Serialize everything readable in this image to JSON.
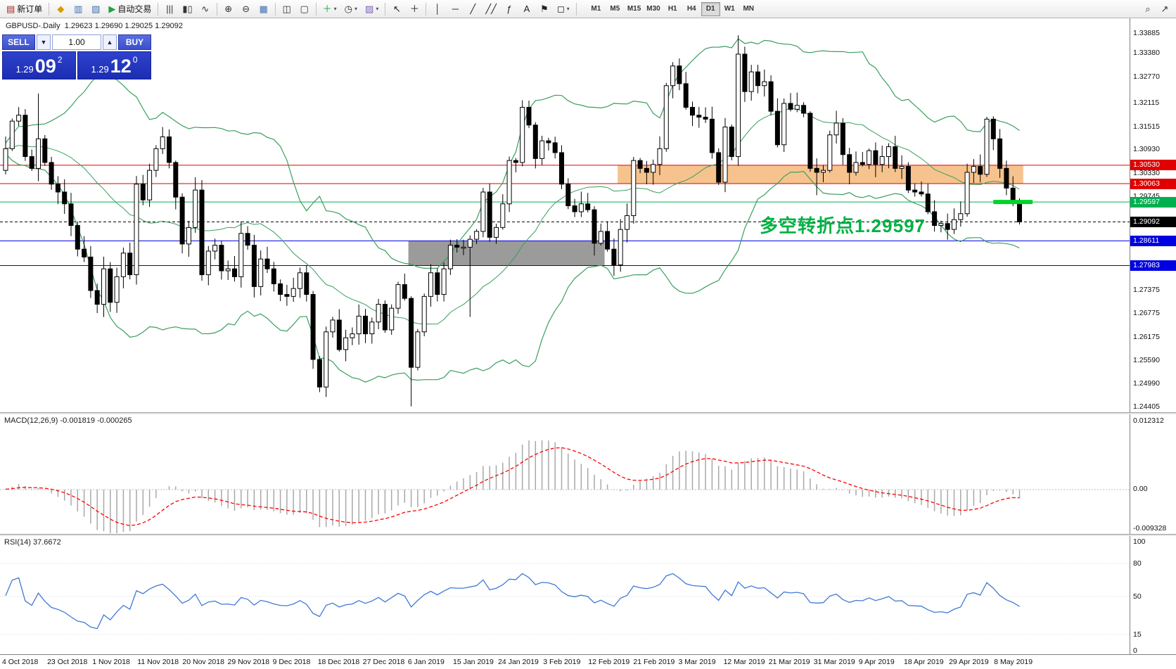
{
  "toolbar": {
    "items": [
      {
        "name": "new-order-button",
        "icon": "new-order-icon",
        "glyph": "▤",
        "color": "#b02020",
        "label": "新订单"
      },
      {
        "sep": true
      },
      {
        "name": "metaeditor-button",
        "icon": "metaeditor-icon",
        "glyph": "◆",
        "color": "#d99a00"
      },
      {
        "name": "new-chart-button",
        "icon": "new-chart-icon",
        "glyph": "▥",
        "color": "#3a6fb0"
      },
      {
        "name": "profiles-button",
        "icon": "profiles-icon",
        "glyph": "▧",
        "color": "#3a6fb0"
      },
      {
        "name": "autotrading-button",
        "icon": "autotrading-icon",
        "glyph": "▶",
        "color": "#1fa43d",
        "label": "自动交易"
      },
      {
        "sep": true
      },
      {
        "name": "bar-chart-button",
        "icon": "bar-chart-icon",
        "glyph": "|||",
        "color": "#333333"
      },
      {
        "name": "candlestick-chart-button",
        "icon": "candlestick-chart-icon",
        "glyph": "▮▯",
        "color": "#333333"
      },
      {
        "name": "line-chart-button",
        "icon": "line-chart-icon",
        "glyph": "∿",
        "color": "#333333"
      },
      {
        "sep": true
      },
      {
        "name": "zoom-in-button",
        "icon": "zoom-in-icon",
        "glyph": "⊕",
        "color": "#333333"
      },
      {
        "name": "zoom-out-button",
        "icon": "zoom-out-icon",
        "glyph": "⊖",
        "color": "#333333"
      },
      {
        "name": "tile-windows-button",
        "icon": "tile-windows-icon",
        "glyph": "▦",
        "color": "#3a6fb0"
      },
      {
        "sep": true
      },
      {
        "name": "arrange-windows-button",
        "icon": "arrange-windows-icon",
        "glyph": "◫",
        "color": "#333333"
      },
      {
        "name": "cascade-windows-button",
        "icon": "cascade-windows-icon",
        "glyph": "▢",
        "color": "#333333"
      },
      {
        "sep": true
      },
      {
        "name": "indicators-button",
        "icon": "indicators-icon",
        "glyph": "＋",
        "color": "#1fa43d",
        "caret": true
      },
      {
        "name": "periods-button",
        "icon": "periods-icon",
        "glyph": "◷",
        "color": "#333333",
        "caret": true
      },
      {
        "name": "templates-button",
        "icon": "templates-icon",
        "glyph": "▨",
        "color": "#7a5cc0",
        "caret": true
      },
      {
        "sep": true
      },
      {
        "name": "cursor-button",
        "icon": "cursor-icon",
        "glyph": "↖",
        "color": "#222222"
      },
      {
        "name": "crosshair-button",
        "icon": "crosshair-icon",
        "glyph": "＋",
        "color": "#222222"
      },
      {
        "sep": true
      },
      {
        "name": "vertical-line-button",
        "icon": "vertical-line-icon",
        "glyph": "│",
        "color": "#222222"
      },
      {
        "name": "horizontal-line-button",
        "icon": "horizontal-line-icon",
        "glyph": "─",
        "color": "#222222"
      },
      {
        "name": "trendline-button",
        "icon": "trendline-icon",
        "glyph": "╱",
        "color": "#222222"
      },
      {
        "name": "channel-button",
        "icon": "channel-icon",
        "glyph": "╱╱",
        "color": "#222222"
      },
      {
        "name": "fibonacci-button",
        "icon": "fibonacci-icon",
        "glyph": "ƒ",
        "color": "#222222"
      },
      {
        "name": "text-button",
        "icon": "text-icon",
        "glyph": "A",
        "color": "#222222"
      },
      {
        "name": "arrow-label-button",
        "icon": "flag-icon",
        "glyph": "⚑",
        "color": "#222222"
      },
      {
        "name": "shapes-button",
        "icon": "shapes-icon",
        "glyph": "◻",
        "color": "#222222",
        "caret": true
      },
      {
        "sep": true
      }
    ],
    "timeframes": [
      "M1",
      "M5",
      "M15",
      "M30",
      "H1",
      "H4",
      "D1",
      "W1",
      "MN"
    ],
    "active_timeframe": "D1",
    "right_items": [
      {
        "name": "search-button",
        "icon": "search-icon",
        "glyph": "⌕",
        "color": "#333333"
      },
      {
        "name": "quick-nav-button",
        "icon": "pointer-icon",
        "glyph": "↗",
        "color": "#333333"
      }
    ]
  },
  "trade_panel": {
    "sell_label": "SELL",
    "buy_label": "BUY",
    "volume": "1.00",
    "down_glyph": "▼",
    "up_glyph": "▲",
    "bid_prefix": "1.29",
    "bid_big": "09",
    "bid_sup": "2",
    "ask_prefix": "1.29",
    "ask_big": "12",
    "ask_sup": "0"
  },
  "chart": {
    "title": "GBPUSD-.Daily",
    "ohlc": "1.29623 1.29690 1.29025 1.29092",
    "annotation_text": "多空转折点1.29597"
  },
  "chart_data": {
    "type": "candlestick",
    "symbol": "GBPUSD",
    "period": "Daily",
    "price_range": [
      1.2426,
      1.3426
    ],
    "open_first": 1.304,
    "last_ohlc": {
      "open": 1.29623,
      "high": 1.2969,
      "low": 1.29025,
      "close": 1.29092
    },
    "closes": [
      1.3095,
      1.3165,
      1.318,
      1.3075,
      1.3045,
      1.312,
      1.306,
      1.3005,
      1.2985,
      1.2955,
      1.29,
      1.284,
      1.282,
      1.2735,
      1.27,
      1.279,
      1.2705,
      1.277,
      1.283,
      1.2775,
      1.3005,
      1.2965,
      1.304,
      1.3095,
      1.3125,
      1.306,
      1.2972,
      1.2853,
      1.2895,
      1.299,
      1.2775,
      1.2835,
      1.285,
      1.2785,
      1.279,
      1.277,
      1.288,
      1.285,
      1.2745,
      1.2815,
      1.279,
      1.2752,
      1.2725,
      1.272,
      1.274,
      1.278,
      1.2725,
      1.256,
      1.249,
      1.263,
      1.266,
      1.2585,
      1.2615,
      1.2625,
      1.267,
      1.2625,
      1.2655,
      1.27,
      1.2635,
      1.269,
      1.275,
      1.2715,
      1.254,
      1.263,
      1.272,
      1.278,
      1.2725,
      1.279,
      1.285,
      1.2845,
      1.2845,
      1.2865,
      1.2885,
      1.2985,
      1.287,
      1.2895,
      1.2955,
      1.3065,
      1.306,
      1.32,
      1.3155,
      1.307,
      1.3115,
      1.311,
      1.3085,
      1.3005,
      1.295,
      1.2935,
      1.2955,
      1.294,
      1.2855,
      1.2885,
      1.284,
      1.28,
      1.289,
      1.2925,
      1.3065,
      1.3045,
      1.3035,
      1.3055,
      1.3095,
      1.3255,
      1.3305,
      1.326,
      1.32,
      1.318,
      1.3175,
      1.317,
      1.3085,
      1.301,
      1.315,
      1.3075,
      1.3335,
      1.324,
      1.329,
      1.3255,
      1.3265,
      1.319,
      1.3105,
      1.321,
      1.3195,
      1.3205,
      1.3185,
      1.3045,
      1.3035,
      1.304,
      1.313,
      1.316,
      1.308,
      1.3035,
      1.306,
      1.3055,
      1.309,
      1.3055,
      1.3075,
      1.31,
      1.3045,
      1.305,
      1.299,
      1.2985,
      1.298,
      1.2935,
      1.29,
      1.2905,
      1.289,
      1.2915,
      1.293,
      1.3035,
      1.305,
      1.303,
      1.317,
      1.312,
      1.3045,
      1.2995,
      1.2962,
      1.2909
    ],
    "wick_overrides": {
      "5": {
        "high": 1.3235
      },
      "24": {
        "high": 1.315
      },
      "48": {
        "low": 1.2477
      },
      "62": {
        "low": 1.2441
      },
      "71": {
        "low": 1.2668
      },
      "79": {
        "high": 1.3218
      },
      "112": {
        "high": 1.3383
      },
      "124": {
        "low": 1.2977
      },
      "150": {
        "high": 1.3176
      }
    },
    "indicators": {
      "bollinger": {
        "period": 20,
        "deviation": 2,
        "color": "#3a9e5f"
      },
      "macd": {
        "label": "MACD(12,26,9)",
        "values": "-0.001819 -0.000265",
        "scale_max": "0.012312",
        "scale_zero": "0.00",
        "scale_min": "-0.009328"
      },
      "rsi": {
        "label": "RSI(14)",
        "value": "37.6672",
        "levels": [
          100,
          80,
          50,
          15,
          0
        ]
      }
    },
    "levels": [
      {
        "price": 1.3053,
        "color": "#e00000",
        "label": "1.30530"
      },
      {
        "price": 1.30063,
        "color": "#e00000",
        "label": "1.30063"
      },
      {
        "price": 1.29597,
        "color": "#00b050",
        "label": "1.29597"
      },
      {
        "price": 1.29092,
        "color": "#000000",
        "label": "1.29092",
        "style": "current"
      },
      {
        "price": 1.28611,
        "color": "#0000e0",
        "label": "1.28611"
      },
      {
        "price": 1.27983,
        "color": "#0000e0",
        "label": "1.27983"
      }
    ],
    "zones": [
      {
        "name": "supply-zone",
        "color": "#f6c38e",
        "price_top": 1.3053,
        "price_bottom": 1.30063,
        "from_candle": 94,
        "to_candle": 156
      },
      {
        "name": "demand-zone",
        "color": "#9b9b9b",
        "price_top": 1.28611,
        "price_bottom": 1.27983,
        "from_candle": 62,
        "to_candle": 92
      }
    ],
    "highlight_segment": {
      "price": 1.29597,
      "color": "#00d22a",
      "from_candle": 151,
      "to_candle": 157
    },
    "colors": {
      "up_candle": "#ffffff",
      "down_candle": "#000000",
      "macd_histogram": "#a8a8a8",
      "macd_signal": "#ff0000",
      "rsi_line": "#4079d6",
      "annotation_green": "#00b244"
    },
    "axis_ticks": [
      "1.33885",
      "1.33380",
      "1.32770",
      "1.32115",
      "1.31515",
      "1.30930",
      "1.30330",
      "1.29745",
      "1.27375",
      "1.26775",
      "1.26175",
      "1.25590",
      "1.24990",
      "1.24405"
    ],
    "dates": [
      "4 Oct 2018",
      "23 Oct 2018",
      "1 Nov 2018",
      "11 Nov 2018",
      "20 Nov 2018",
      "29 Nov 2018",
      "9 Dec 2018",
      "18 Dec 2018",
      "27 Dec 2018",
      "6 Jan 2019",
      "15 Jan 2019",
      "24 Jan 2019",
      "3 Feb 2019",
      "12 Feb 2019",
      "21 Feb 2019",
      "3 Mar 2019",
      "12 Mar 2019",
      "21 Mar 2019",
      "31 Mar 2019",
      "9 Apr 2019",
      "18 Apr 2019",
      "29 Apr 2019",
      "8 May 2019"
    ]
  }
}
